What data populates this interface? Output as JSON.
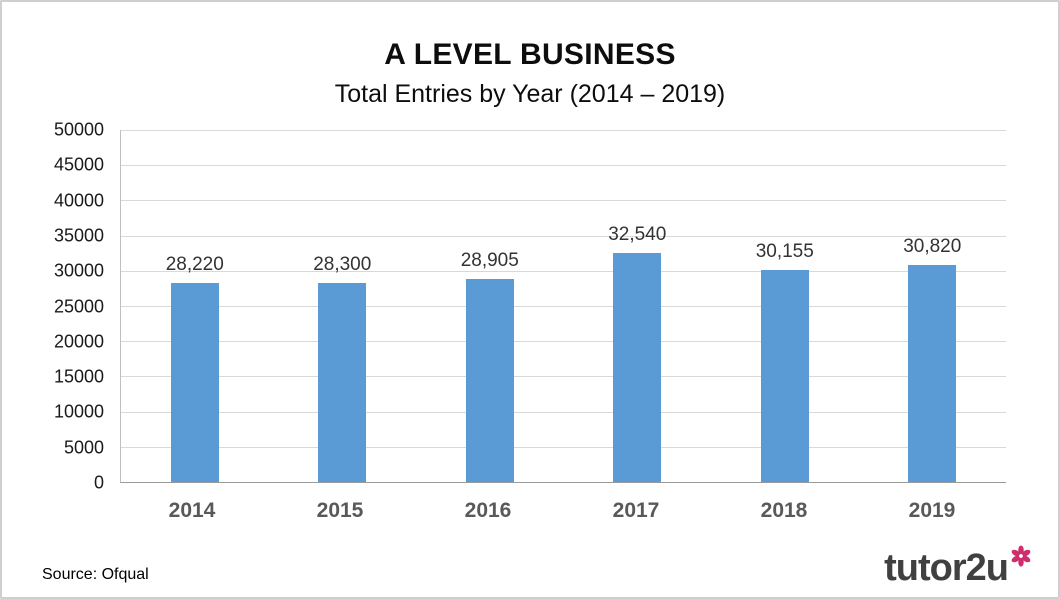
{
  "header": {
    "title": "A LEVEL BUSINESS",
    "subtitle": "Total Entries by Year (2014 – 2019)"
  },
  "footer": {
    "source": "Source: Ofqual",
    "logo_text": "tutor2u"
  },
  "colors": {
    "bar": "#5B9BD5",
    "flower": "#CE2F6C",
    "gridline": "#D9D9D9",
    "x_label": "#595959"
  },
  "chart_data": {
    "type": "bar",
    "title": "A LEVEL BUSINESS",
    "subtitle": "Total Entries by Year (2014 – 2019)",
    "categories": [
      "2014",
      "2015",
      "2016",
      "2017",
      "2018",
      "2019"
    ],
    "values": [
      28220,
      28300,
      28905,
      32540,
      30155,
      30820
    ],
    "value_labels": [
      "28,220",
      "28,300",
      "28,905",
      "32,540",
      "30,155",
      "30,820"
    ],
    "xlabel": "",
    "ylabel": "",
    "ylim": [
      0,
      50000
    ],
    "ytick_step": 5000,
    "ytick_labels": [
      "0",
      "5000",
      "10000",
      "15000",
      "20000",
      "25000",
      "30000",
      "35000",
      "40000",
      "45000",
      "50000"
    ],
    "grid": true,
    "legend": "none",
    "bar_color": "#5B9BD5",
    "source": "Source: Ofqual"
  }
}
